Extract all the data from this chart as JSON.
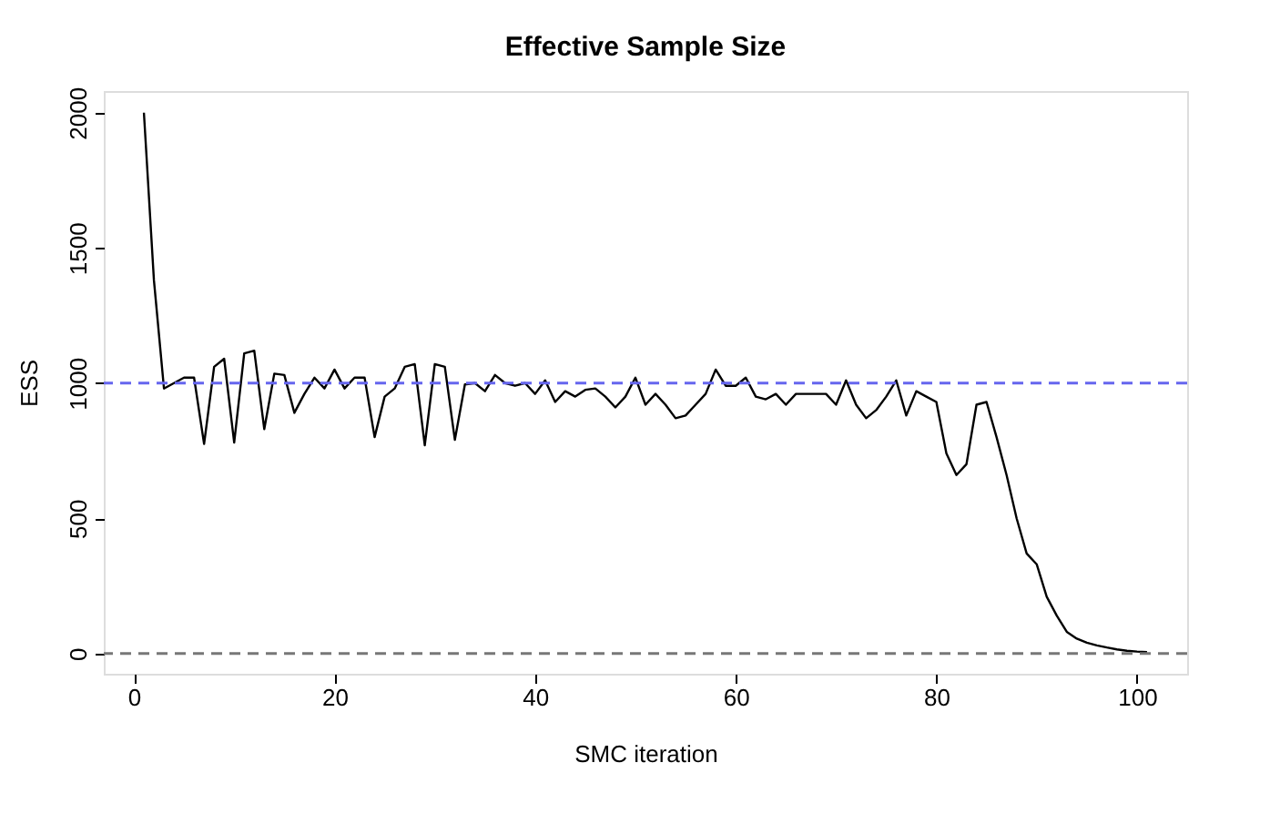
{
  "chart_data": {
    "type": "line",
    "title": "Effective Sample Size",
    "xlabel": "SMC iteration",
    "ylabel": "ESS",
    "x": [
      1,
      2,
      3,
      4,
      5,
      6,
      7,
      8,
      9,
      10,
      11,
      12,
      13,
      14,
      15,
      16,
      17,
      18,
      19,
      20,
      21,
      22,
      23,
      24,
      25,
      26,
      27,
      28,
      29,
      30,
      31,
      32,
      33,
      34,
      35,
      36,
      37,
      38,
      39,
      40,
      41,
      42,
      43,
      44,
      45,
      46,
      47,
      48,
      49,
      50,
      51,
      52,
      53,
      54,
      55,
      56,
      57,
      58,
      59,
      60,
      61,
      62,
      63,
      64,
      65,
      66,
      67,
      68,
      69,
      70,
      71,
      72,
      73,
      74,
      75,
      76,
      77,
      78,
      79,
      80,
      81,
      82,
      83,
      84,
      85,
      86,
      87,
      88,
      89,
      90,
      91,
      92,
      93,
      94,
      95,
      96,
      97,
      98,
      99,
      100,
      101
    ],
    "series": [
      {
        "color": "#000000",
        "values": [
          2000,
          1380,
          980,
          1000,
          1020,
          1020,
          775,
          1060,
          1090,
          780,
          1110,
          1120,
          830,
          1035,
          1030,
          890,
          960,
          1020,
          980,
          1050,
          980,
          1020,
          1020,
          800,
          950,
          980,
          1060,
          1070,
          770,
          1070,
          1060,
          790,
          995,
          1000,
          970,
          1030,
          1000,
          990,
          1000,
          960,
          1010,
          930,
          970,
          950,
          975,
          980,
          950,
          910,
          950,
          1020,
          920,
          960,
          920,
          870,
          880,
          920,
          960,
          1050,
          990,
          990,
          1020,
          950,
          940,
          960,
          920,
          960,
          960,
          960,
          960,
          920,
          1010,
          920,
          870,
          900,
          950,
          1010,
          880,
          970,
          950,
          930,
          740,
          660,
          700,
          920,
          930,
          800,
          660,
          500,
          370,
          330,
          210,
          140,
          80,
          55,
          40,
          30,
          22,
          15,
          10,
          7,
          5
        ]
      }
    ],
    "xlim": [
      -3,
      105
    ],
    "ylim": [
      -75,
      2080
    ],
    "xticks": [
      0,
      20,
      40,
      60,
      80,
      100
    ],
    "yticks": [
      0,
      500,
      1000,
      1500,
      2000
    ],
    "ref_lines": [
      {
        "axis": "y",
        "value": 1000,
        "color": "#6666ee",
        "line_style": "dashed"
      },
      {
        "axis": "y",
        "value": 0,
        "color": "#777777",
        "line_style": "dashed"
      }
    ],
    "grid": false,
    "marker": "none",
    "line_style": "solid"
  }
}
